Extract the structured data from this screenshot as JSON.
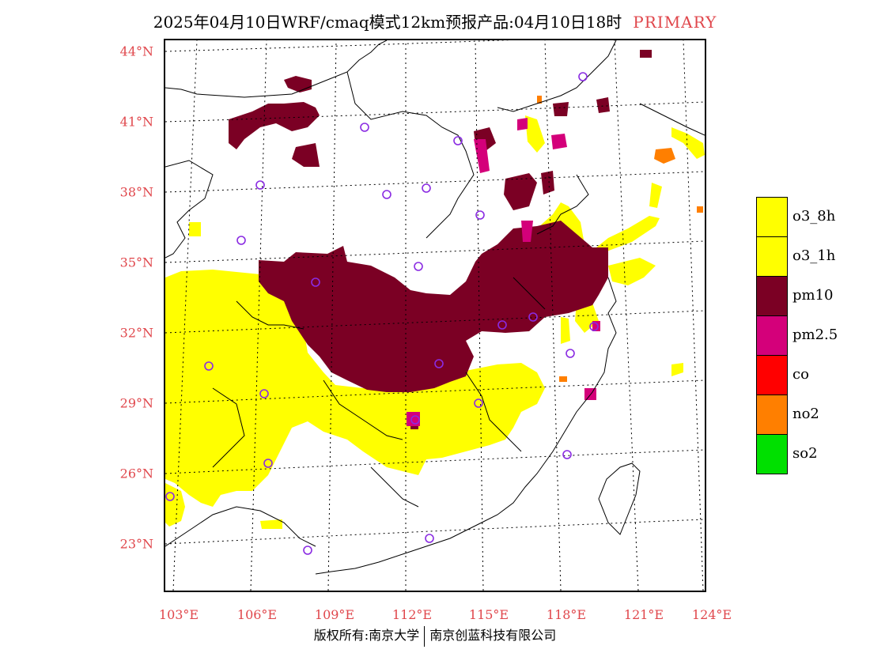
{
  "header": {
    "title": "2025年04月10日WRF/cmaq模式12km预报产品:04月10日18时",
    "badge": "PRIMARY",
    "badge_color": "#e0474c"
  },
  "axes": {
    "lat_labels": [
      "44°N",
      "41°N",
      "38°N",
      "35°N",
      "32°N",
      "29°N",
      "26°N",
      "23°N"
    ],
    "lon_labels": [
      "103°E",
      "106°E",
      "109°E",
      "112°E",
      "115°E",
      "118°E",
      "121°E",
      "124°E"
    ],
    "label_color": "#e0474c"
  },
  "legend": {
    "items": [
      {
        "label": "o3_8h",
        "color": "#ffff00"
      },
      {
        "label": "o3_1h",
        "color": "#ffff00"
      },
      {
        "label": "pm10",
        "color": "#7b0024"
      },
      {
        "label": "pm2.5",
        "color": "#d4007a"
      },
      {
        "label": "co",
        "color": "#ff0000"
      },
      {
        "label": "no2",
        "color": "#ff7f00"
      },
      {
        "label": "so2",
        "color": "#00e000"
      }
    ]
  },
  "footer": {
    "left": "版权所有:南京大学",
    "right": "南京创蓝科技有限公司"
  }
}
